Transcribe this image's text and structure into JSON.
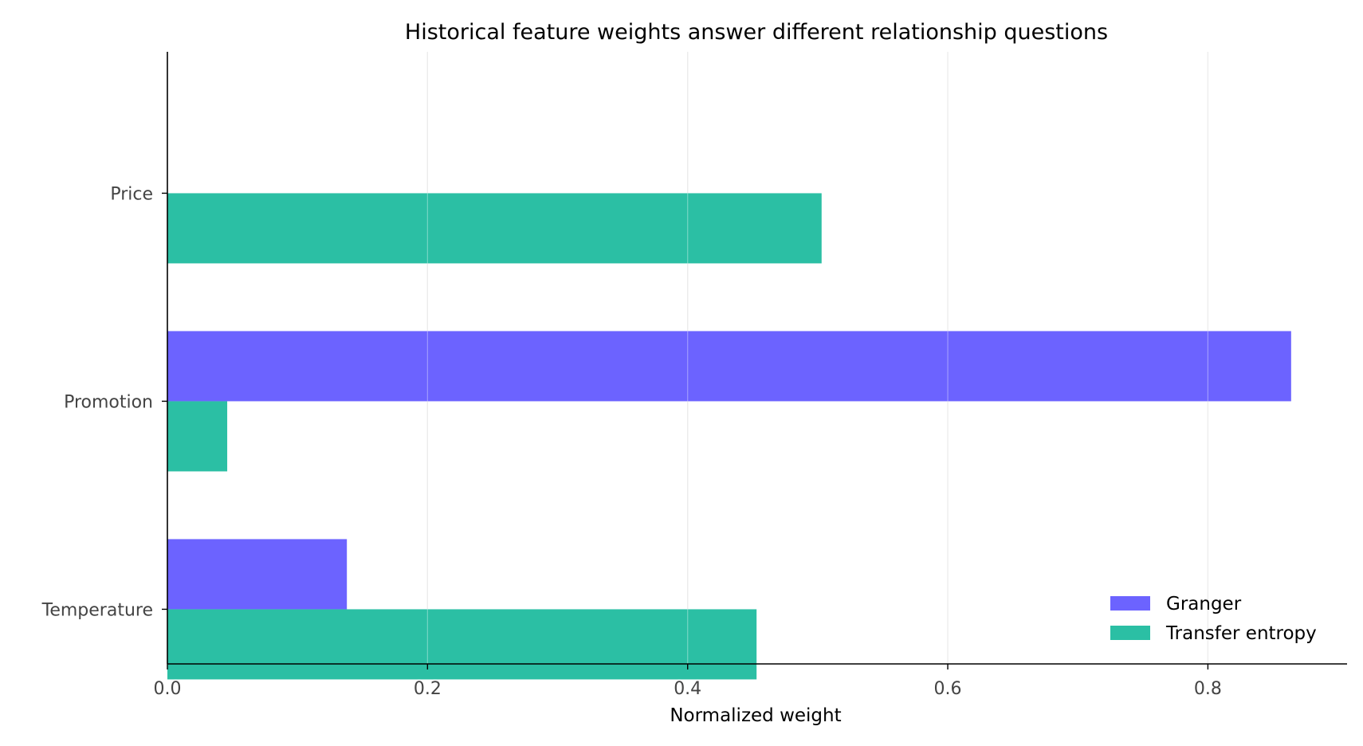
{
  "chart_data": {
    "type": "bar",
    "orientation": "horizontal",
    "title": "Historical feature weights answer different relationship questions",
    "xlabel": "Normalized weight",
    "ylabel": "",
    "categories": [
      "Price",
      "Promotion",
      "Temperature"
    ],
    "series": [
      {
        "name": "Granger",
        "color": "#6c63ff",
        "values": [
          0.0,
          0.864,
          0.138
        ]
      },
      {
        "name": "Transfer entropy",
        "color": "#2bbfa4",
        "values": [
          0.503,
          0.046,
          0.453
        ]
      }
    ],
    "xlim": [
      0.0,
      0.907
    ],
    "xticks": [
      0.0,
      0.2,
      0.4,
      0.6,
      0.8
    ],
    "xtick_labels": [
      "0.0",
      "0.2",
      "0.4",
      "0.6",
      "0.8"
    ],
    "grid": "x",
    "legend_position": "lower-right"
  }
}
